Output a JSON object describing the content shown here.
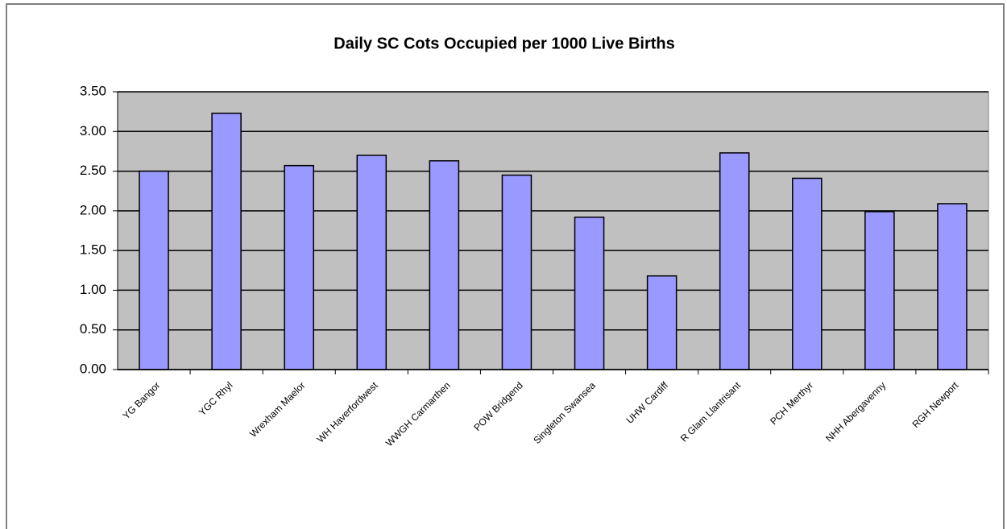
{
  "chart_data": {
    "type": "bar",
    "title": "Daily SC Cots Occupied per 1000 Live Births",
    "categories": [
      "YG Bangor",
      "YGC Rhyl",
      "Wrexham Maelor",
      "WH Haverfordwest",
      "WWGH Carmarthen",
      "POW Bridgend",
      "Singleton Swansea",
      "UHW Cardiff",
      "R Glam Llantrisant",
      "PCH Merthyr",
      "NHH Abergavenny",
      "RGH Newport"
    ],
    "values": [
      2.5,
      3.23,
      2.57,
      2.7,
      2.63,
      2.45,
      1.92,
      1.18,
      2.73,
      2.41,
      1.99,
      2.09
    ],
    "color": "#9999ff",
    "ylim": [
      0,
      3.5
    ],
    "yticks": [
      {
        "value": 0,
        "label": "0.00"
      },
      {
        "value": 0.5,
        "label": "0.50"
      },
      {
        "value": 1,
        "label": "1.00"
      },
      {
        "value": 1.5,
        "label": "1.50"
      },
      {
        "value": 2,
        "label": "2.00"
      },
      {
        "value": 2.5,
        "label": "2.50"
      },
      {
        "value": 3,
        "label": "3.00"
      },
      {
        "value": 3.5,
        "label": "3.50"
      }
    ],
    "grid": true
  }
}
